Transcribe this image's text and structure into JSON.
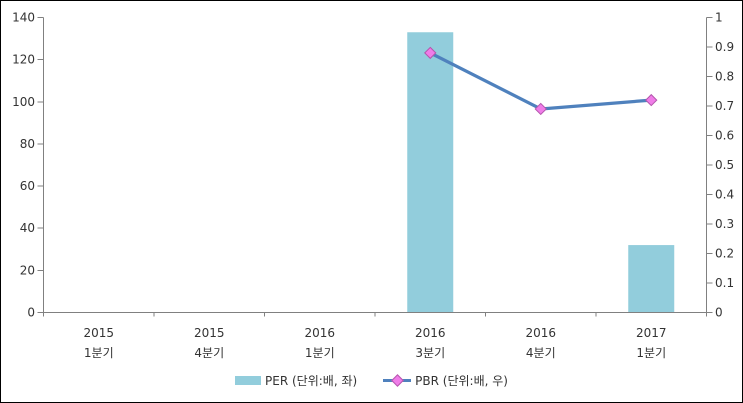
{
  "chart_data": {
    "type": "combo",
    "title": "",
    "xlabel": "",
    "ylabel_left": "",
    "ylabel_right": "",
    "grid": false,
    "legend_position": "bottom",
    "background": "#FFFFFF",
    "axis_color": "#808080",
    "text_color": "#333333",
    "categories": [
      {
        "line1": "2015",
        "line2": "1분기"
      },
      {
        "line1": "2015",
        "line2": "4분기"
      },
      {
        "line1": "2016",
        "line2": "1분기"
      },
      {
        "line1": "2016",
        "line2": "3분기"
      },
      {
        "line1": "2016",
        "line2": "4분기"
      },
      {
        "line1": "2017",
        "line2": "1분기"
      }
    ],
    "series": [
      {
        "name": "PER (단위:배, 좌)",
        "type": "bar",
        "axis": "left",
        "color": "#92CDDC",
        "values": [
          null,
          null,
          null,
          133,
          null,
          32
        ]
      },
      {
        "name": "PBR (단위:배, 우)",
        "type": "line",
        "axis": "right",
        "color": "#4F81BD",
        "marker": "diamond",
        "marker_color": "#F07CE8",
        "marker_border_color": "#B356AC",
        "values": [
          null,
          null,
          null,
          0.88,
          0.69,
          0.72
        ]
      }
    ],
    "left_axis": {
      "min": 0,
      "max": 140,
      "step": 20,
      "tick_labels": [
        "0",
        "20",
        "40",
        "60",
        "80",
        "100",
        "120",
        "140"
      ]
    },
    "right_axis": {
      "min": 0,
      "max": 1,
      "step": 0.1,
      "tick_labels": [
        "0",
        "0.1",
        "0.2",
        "0.3",
        "0.4",
        "0.5",
        "0.6",
        "0.7",
        "0.8",
        "0.9",
        "1"
      ]
    }
  }
}
